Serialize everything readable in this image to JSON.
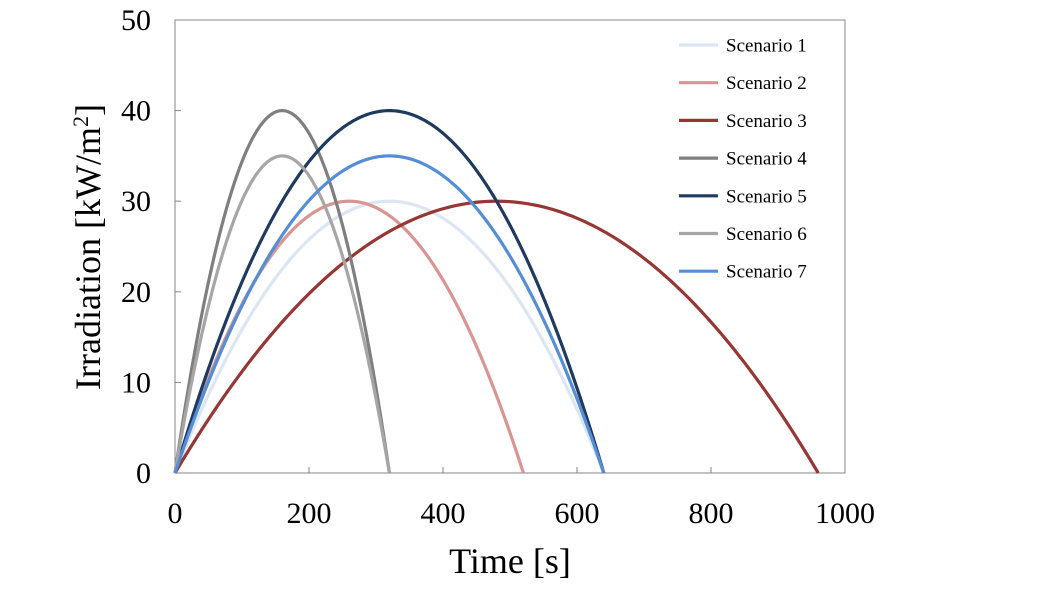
{
  "chart_data": {
    "type": "line",
    "title": "",
    "xlabel": "Time [s]",
    "ylabel_main": "Irradiation [kW/m",
    "ylabel_sup": "2",
    "ylabel_close": "]",
    "xlim": [
      0,
      1000
    ],
    "ylim": [
      0,
      50
    ],
    "x_ticks": [
      "0",
      "200",
      "400",
      "600",
      "800",
      "1000"
    ],
    "y_ticks": [
      "0",
      "10",
      "20",
      "30",
      "40",
      "50"
    ],
    "grid": false,
    "legend_position": "top-right",
    "series": [
      {
        "name": "Scenario 1",
        "color": "#dce6f2",
        "peak_time": 320,
        "peak_value": 30,
        "duration": 640
      },
      {
        "name": "Scenario 2",
        "color": "#d99594",
        "peak_time": 260,
        "peak_value": 30,
        "duration": 520
      },
      {
        "name": "Scenario 3",
        "color": "#953735",
        "peak_time": 480,
        "peak_value": 30,
        "duration": 960
      },
      {
        "name": "Scenario 4",
        "color": "#7f7f7f",
        "peak_time": 160,
        "peak_value": 40,
        "duration": 320
      },
      {
        "name": "Scenario 5",
        "color": "#1f3a5f",
        "peak_time": 320,
        "peak_value": 40,
        "duration": 640
      },
      {
        "name": "Scenario 6",
        "color": "#a6a6a6",
        "peak_time": 160,
        "peak_value": 35,
        "duration": 320
      },
      {
        "name": "Scenario 7",
        "color": "#558ed5",
        "peak_time": 320,
        "peak_value": 35,
        "duration": 640
      }
    ]
  }
}
